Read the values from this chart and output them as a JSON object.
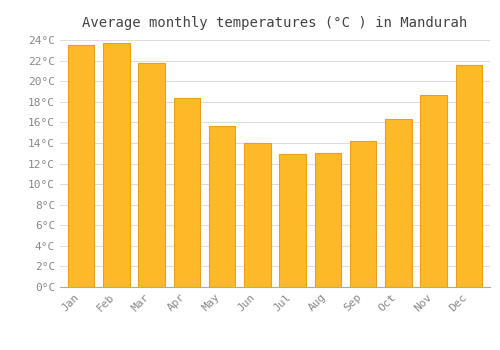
{
  "title": "Average monthly temperatures (°C ) in Mandurah",
  "months": [
    "Jan",
    "Feb",
    "Mar",
    "Apr",
    "May",
    "Jun",
    "Jul",
    "Aug",
    "Sep",
    "Oct",
    "Nov",
    "Dec"
  ],
  "values": [
    23.5,
    23.7,
    21.8,
    18.4,
    15.7,
    14.0,
    12.9,
    13.0,
    14.2,
    16.3,
    18.7,
    21.6
  ],
  "bar_color": "#FDB927",
  "bar_edge_color": "#E8A020",
  "background_color": "#FFFFFF",
  "grid_color": "#DDDDDD",
  "ytick_max": 24,
  "ytick_step": 2,
  "title_fontsize": 10,
  "tick_fontsize": 8,
  "font_family": "monospace"
}
